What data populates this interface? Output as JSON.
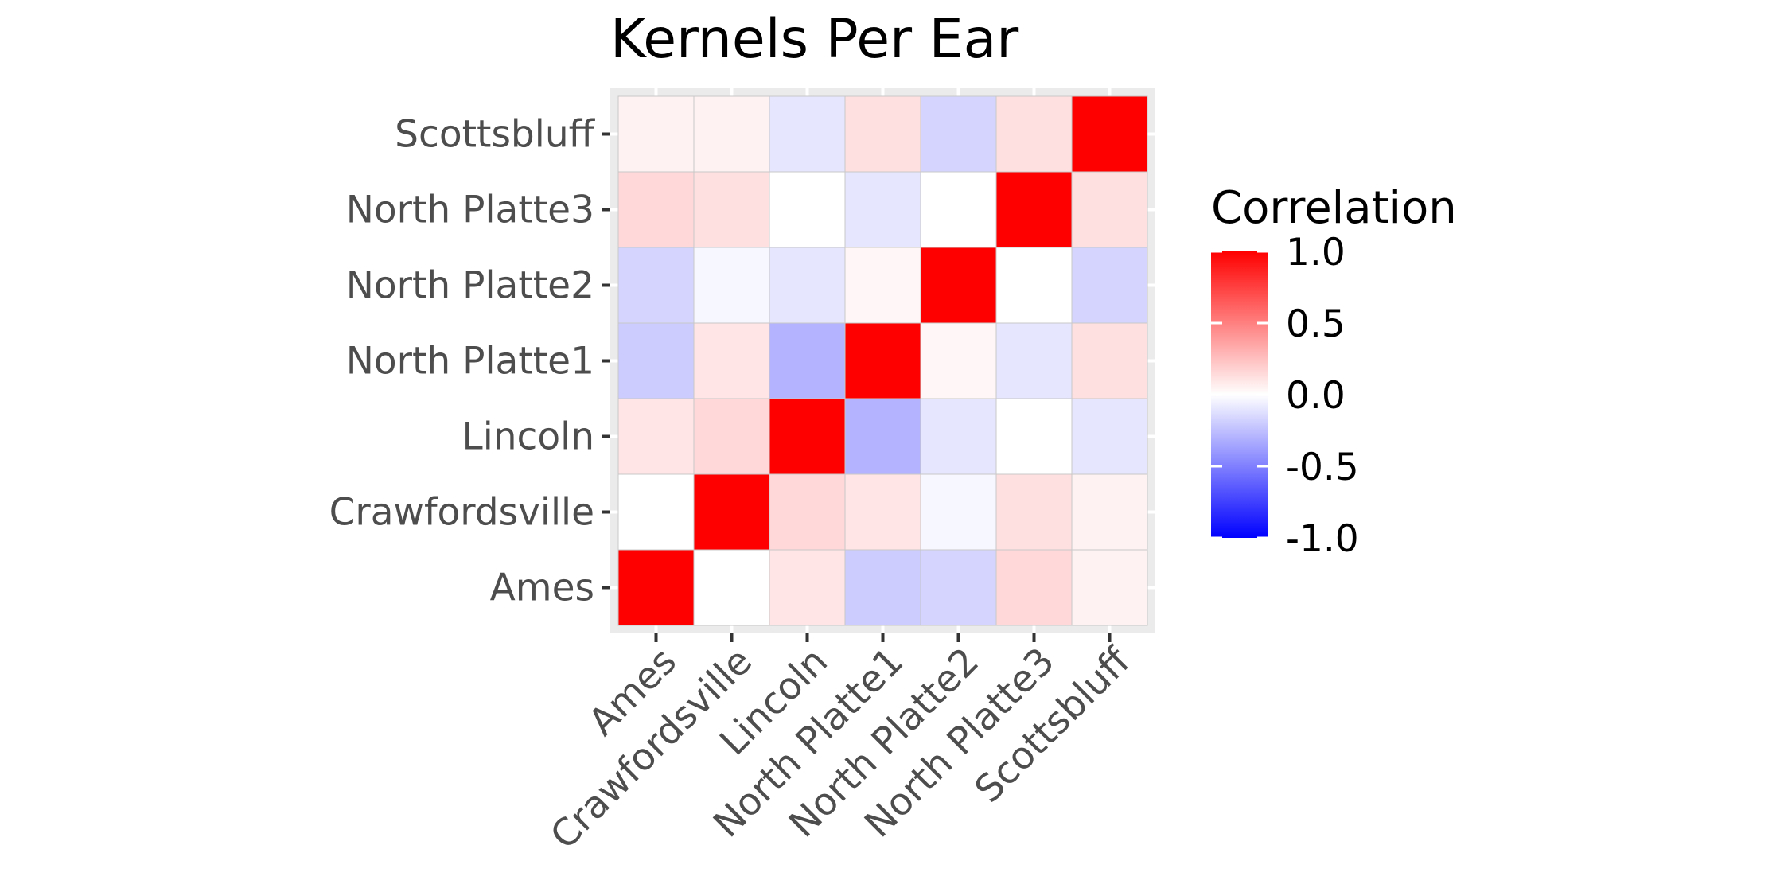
{
  "chart_data": {
    "type": "heatmap",
    "title": "Kernels Per Ear",
    "xlabel": "",
    "ylabel": "",
    "categories": [
      "Ames",
      "Crawfordsville",
      "Lincoln",
      "North Platte1",
      "North Platte2",
      "North Platte3",
      "Scottsbluff"
    ],
    "matrix": [
      [
        1.0,
        0.0,
        0.1,
        -0.2,
        -0.17,
        0.15,
        0.05
      ],
      [
        0.0,
        1.0,
        0.15,
        0.1,
        -0.03,
        0.12,
        0.05
      ],
      [
        0.1,
        0.15,
        1.0,
        -0.3,
        -0.1,
        0.0,
        -0.1
      ],
      [
        -0.2,
        0.1,
        -0.3,
        1.0,
        0.03,
        -0.1,
        0.12
      ],
      [
        -0.17,
        -0.03,
        -0.1,
        0.03,
        1.0,
        0.0,
        -0.17
      ],
      [
        0.15,
        0.12,
        0.0,
        -0.1,
        0.0,
        1.0,
        0.12
      ],
      [
        0.05,
        0.05,
        -0.1,
        0.12,
        -0.17,
        0.12,
        1.0
      ]
    ],
    "color_scale": {
      "low": "#0000ff",
      "mid": "#ffffff",
      "high": "#ff0000",
      "limits": [
        -1.0,
        1.0
      ]
    },
    "legend": {
      "title": "Correlation",
      "labels": [
        "1.0",
        "0.5",
        "0.0",
        "-0.5",
        "-1.0"
      ],
      "values": [
        1.0,
        0.5,
        0.0,
        -0.5,
        -1.0
      ],
      "position": "right"
    },
    "panel_background": "#ebebeb",
    "grid": true
  }
}
